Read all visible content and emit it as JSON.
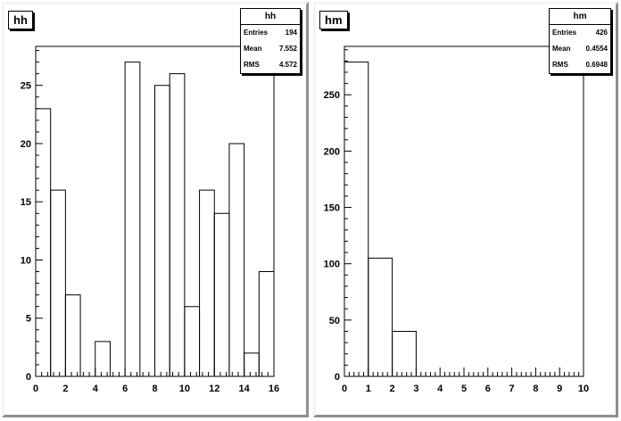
{
  "chart_data": [
    {
      "type": "bar",
      "title": "hh",
      "stats": {
        "name": "hh",
        "rows": [
          {
            "label": "Entries",
            "value": "194"
          },
          {
            "label": "Mean",
            "value": "7.552"
          },
          {
            "label": "RMS",
            "value": "4.572"
          }
        ]
      },
      "bin_edges": [
        0,
        1,
        2,
        3,
        4,
        5,
        6,
        7,
        8,
        9,
        10,
        11,
        12,
        13,
        14,
        15,
        16
      ],
      "values": [
        23,
        16,
        7,
        0,
        3,
        0,
        27,
        0,
        25,
        26,
        6,
        16,
        14,
        20,
        2,
        9
      ],
      "xlim": [
        0,
        16
      ],
      "ylim": [
        0,
        28.35
      ],
      "xticks": [
        0,
        2,
        4,
        6,
        8,
        10,
        12,
        14,
        16
      ],
      "yticks": [
        0,
        5,
        10,
        15,
        20,
        25
      ]
    },
    {
      "type": "bar",
      "title": "hm",
      "stats": {
        "name": "hm",
        "rows": [
          {
            "label": "Entries",
            "value": "426"
          },
          {
            "label": "Mean",
            "value": "0.4554"
          },
          {
            "label": "RMS",
            "value": "0.6948"
          }
        ]
      },
      "bin_edges": [
        0,
        1,
        2,
        3,
        4,
        5,
        6,
        7,
        8,
        9,
        10
      ],
      "values": [
        279,
        105,
        40,
        0,
        0,
        0,
        0,
        0,
        0,
        0
      ],
      "xlim": [
        0,
        10
      ],
      "ylim": [
        0,
        292.95
      ],
      "xticks": [
        0,
        1,
        2,
        3,
        4,
        5,
        6,
        7,
        8,
        9,
        10
      ],
      "yticks": [
        0,
        50,
        100,
        150,
        200,
        250
      ]
    }
  ]
}
